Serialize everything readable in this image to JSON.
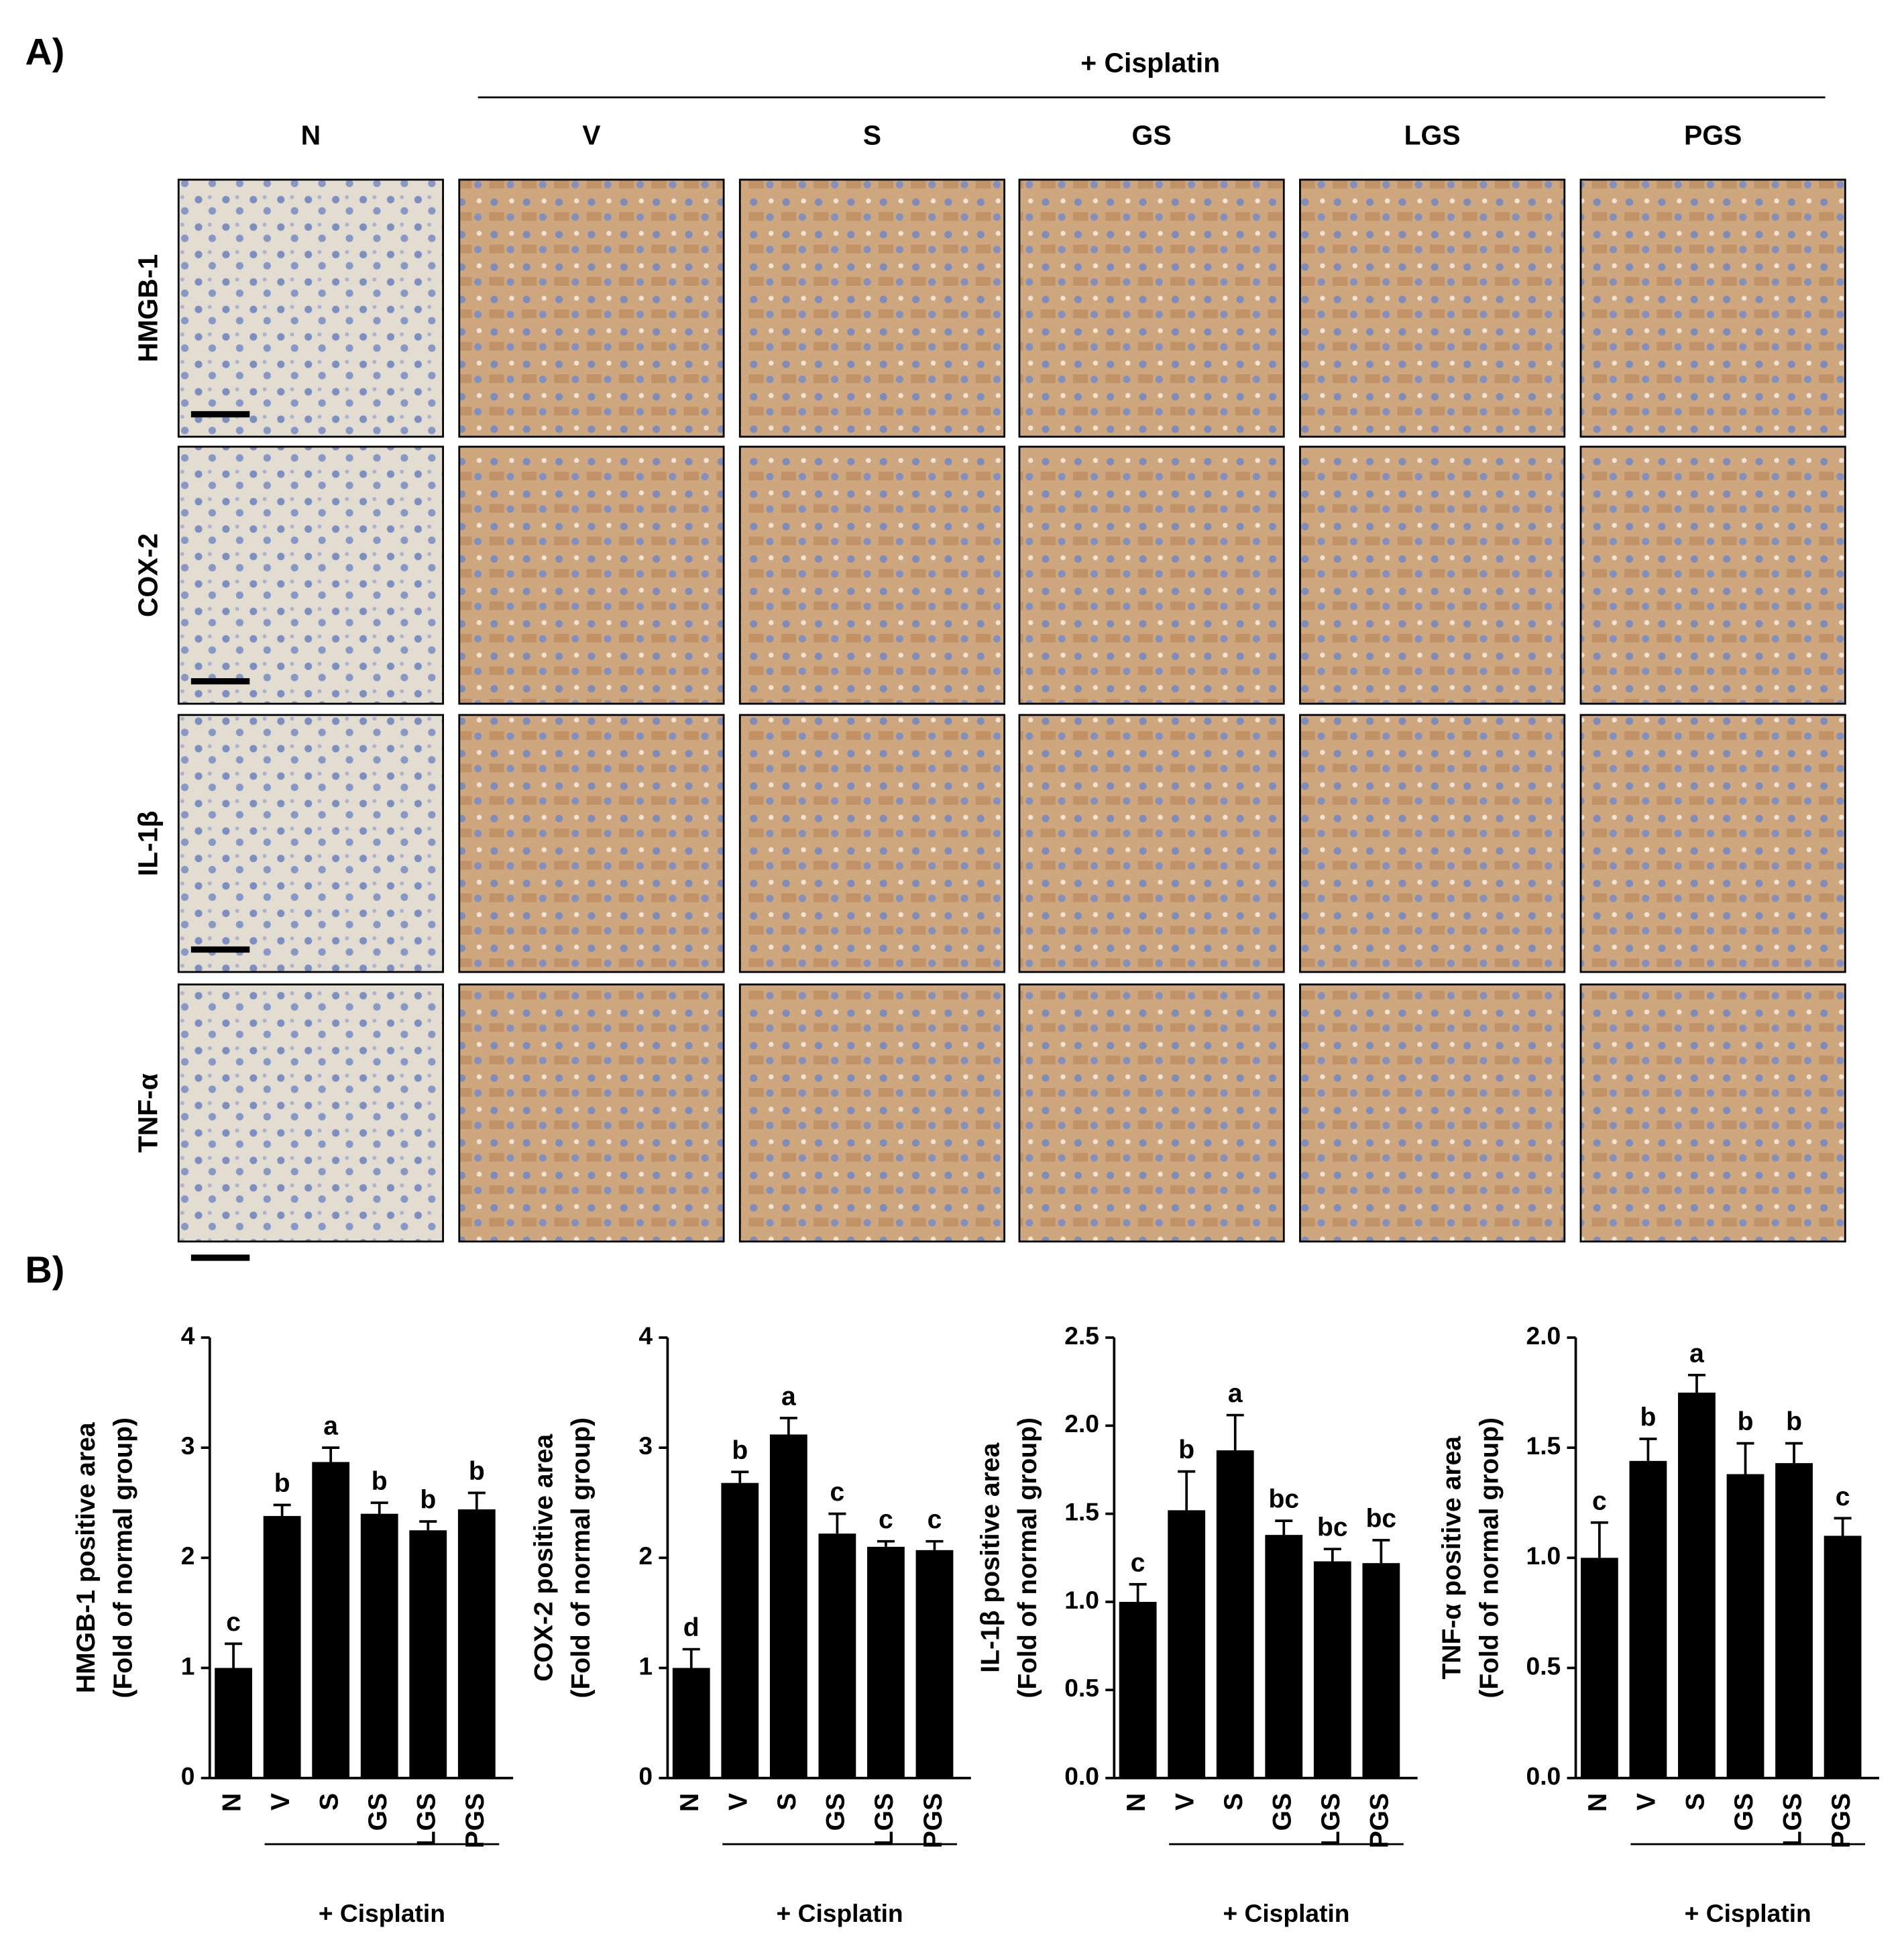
{
  "panel_a": {
    "label": "A)",
    "group_label": "+ Cisplatin",
    "columns": [
      "N",
      "V",
      "S",
      "GS",
      "LGS",
      "PGS"
    ],
    "rows": [
      "HMGB-1",
      "COX-2",
      "IL-1β",
      "TNF-α"
    ]
  },
  "panel_b": {
    "label": "B)"
  },
  "chart_data": [
    {
      "type": "bar",
      "y_label": [
        "HMGB-1 positive area",
        "(Fold of normal group)"
      ],
      "categories": [
        "N",
        "V",
        "S",
        "GS",
        "LGS",
        "PGS"
      ],
      "group_label": "+ Cisplatin",
      "values": [
        1.0,
        2.38,
        2.87,
        2.4,
        2.25,
        2.44
      ],
      "errors": [
        0.22,
        0.1,
        0.13,
        0.1,
        0.08,
        0.15
      ],
      "letters": [
        "c",
        "b",
        "a",
        "b",
        "b",
        "b"
      ],
      "color": "#000000",
      "ylim": [
        0,
        4
      ],
      "yticks": [
        0,
        1,
        2,
        3,
        4
      ]
    },
    {
      "type": "bar",
      "y_label": [
        "COX-2 positive area",
        "(Fold of normal group)"
      ],
      "categories": [
        "N",
        "V",
        "S",
        "GS",
        "LGS",
        "PGS"
      ],
      "group_label": "+ Cisplatin",
      "values": [
        1.0,
        2.68,
        3.12,
        2.22,
        2.1,
        2.07
      ],
      "errors": [
        0.17,
        0.1,
        0.15,
        0.18,
        0.05,
        0.08
      ],
      "letters": [
        "d",
        "b",
        "a",
        "c",
        "c",
        "c"
      ],
      "color": "#000000",
      "ylim": [
        0,
        4
      ],
      "yticks": [
        0,
        1,
        2,
        3,
        4
      ]
    },
    {
      "type": "bar",
      "y_label": [
        "IL-1β positive area",
        "(Fold of normal group)"
      ],
      "categories": [
        "N",
        "V",
        "S",
        "GS",
        "LGS",
        "PGS"
      ],
      "group_label": "+ Cisplatin",
      "values": [
        1.0,
        1.52,
        1.86,
        1.38,
        1.23,
        1.22
      ],
      "errors": [
        0.1,
        0.22,
        0.2,
        0.08,
        0.07,
        0.13
      ],
      "letters": [
        "c",
        "b",
        "a",
        "bc",
        "bc",
        "bc"
      ],
      "color": "#000000",
      "ylim": [
        0,
        2.5
      ],
      "yticks": [
        {
          "value": 0,
          "label": "0.0"
        },
        0.5,
        {
          "value": 1,
          "label": "1.0"
        },
        1.5,
        {
          "value": 2,
          "label": "2.0"
        },
        2.5
      ]
    },
    {
      "type": "bar",
      "y_label": [
        "TNF-α positive area",
        "(Fold of normal group)"
      ],
      "categories": [
        "N",
        "V",
        "S",
        "GS",
        "LGS",
        "PGS"
      ],
      "group_label": "+ Cisplatin",
      "values": [
        1.0,
        1.44,
        1.75,
        1.38,
        1.43,
        1.1
      ],
      "errors": [
        0.16,
        0.1,
        0.08,
        0.14,
        0.09,
        0.08
      ],
      "letters": [
        "c",
        "b",
        "a",
        "b",
        "b",
        "c"
      ],
      "color": "#000000",
      "ylim": [
        0,
        2.0
      ],
      "yticks": [
        {
          "value": 0,
          "label": "0.0"
        },
        0.5,
        {
          "value": 1,
          "label": "1.0"
        },
        1.5,
        {
          "value": 2,
          "label": "2.0"
        }
      ]
    }
  ]
}
